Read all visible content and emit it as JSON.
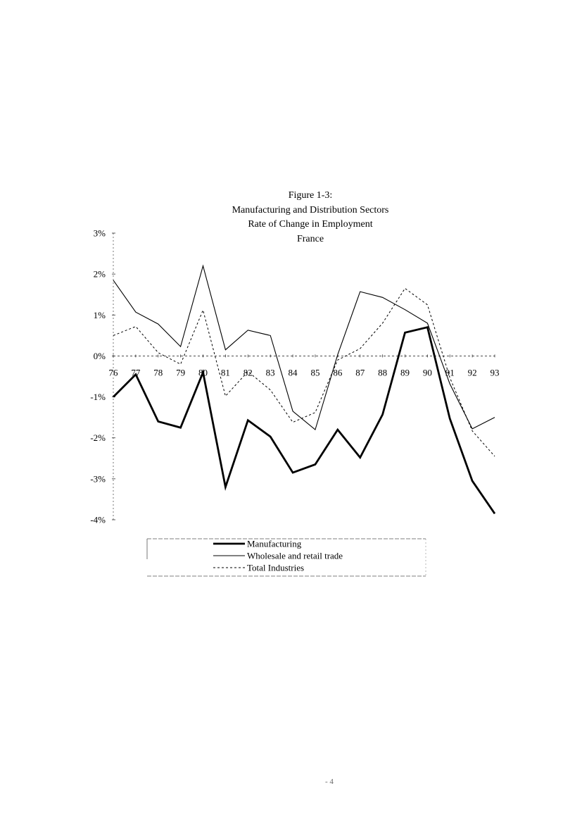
{
  "page": {
    "footer_mark": "- 4"
  },
  "chart_data": {
    "type": "line",
    "title": [
      "Figure 1-3:",
      "Manufacturing and Distribution Sectors",
      "Rate of Change in Employment",
      "France"
    ],
    "categories": [
      "76",
      "77",
      "78",
      "79",
      "80",
      "81",
      "82",
      "83",
      "84",
      "85",
      "86",
      "87",
      "88",
      "89",
      "90",
      "91",
      "92",
      "93"
    ],
    "y_ticks": [
      "3%",
      "2%",
      "1%",
      "0%",
      "-1%",
      "-2%",
      "-3%",
      "-4%"
    ],
    "y_tick_values": [
      3,
      2,
      1,
      0,
      -1,
      -2,
      -3,
      -4
    ],
    "ylim": [
      -4,
      3
    ],
    "xlabel": "",
    "ylabel": "",
    "grid": false,
    "legend_position": "bottom",
    "series": [
      {
        "name": "Manufacturing",
        "style": "thick",
        "color": "#000000",
        "values": [
          -1.0,
          -0.45,
          -1.6,
          -1.75,
          -0.4,
          -3.2,
          -1.57,
          -1.97,
          -2.85,
          -2.65,
          -1.8,
          -2.48,
          -1.43,
          0.57,
          0.7,
          -1.53,
          -3.05,
          -3.85
        ]
      },
      {
        "name": "Wholesale and retail trade",
        "style": "thin",
        "color": "#000000",
        "values": [
          1.85,
          1.07,
          0.78,
          0.23,
          2.2,
          0.15,
          0.63,
          0.5,
          -1.35,
          -1.8,
          0.03,
          1.57,
          1.43,
          1.13,
          0.8,
          -0.68,
          -1.78,
          -1.5
        ]
      },
      {
        "name": "Total Industries",
        "style": "dashed",
        "color": "#000000",
        "values": [
          0.5,
          0.72,
          0.08,
          -0.2,
          1.12,
          -0.98,
          -0.38,
          -0.83,
          -1.62,
          -1.38,
          -0.1,
          0.18,
          0.8,
          1.65,
          1.25,
          -0.53,
          -1.83,
          -2.45
        ]
      }
    ]
  }
}
